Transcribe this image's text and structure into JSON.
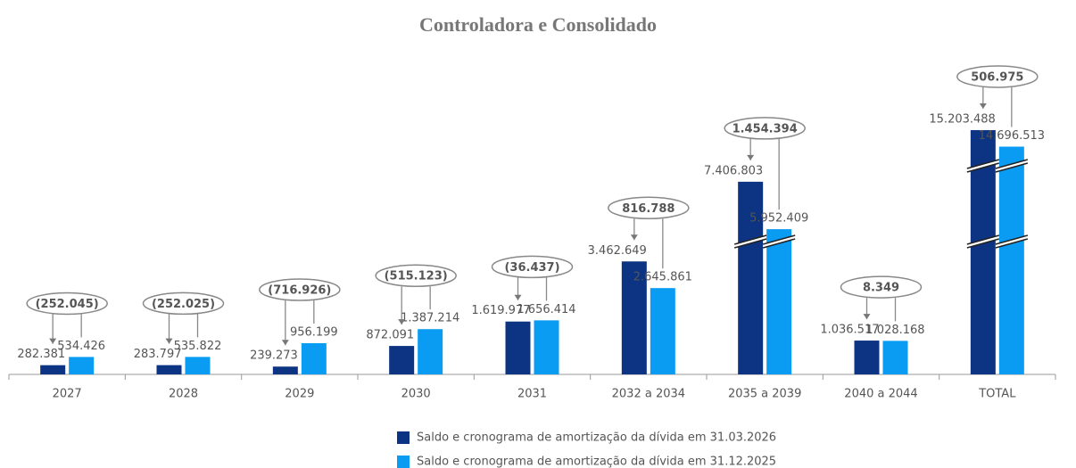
{
  "chart_data": {
    "type": "bar",
    "title": "Controladora e Consolidado",
    "categories": [
      "2027",
      "2028",
      "2029",
      "2030",
      "2031",
      "2032 a 2034",
      "2035 a 2039",
      "2040 a 2044",
      "TOTAL"
    ],
    "series": [
      {
        "name": "Saldo e cronograma de amortização da dívida em 31.03.2026",
        "color": "#0c3482",
        "values": [
          282381,
          283797,
          239273,
          872091,
          1619977,
          3462649,
          7406803,
          1036517,
          15203488
        ],
        "value_labels": [
          "282.381",
          "283.797",
          "239.273",
          "872.091",
          "1.619.977",
          "3.462.649",
          "7.406.803",
          "1.036.517",
          "15.203.488"
        ]
      },
      {
        "name": "Saldo e cronograma de amortização da dívida em 31.12.2025",
        "color": "#0a9bf3",
        "values": [
          534426,
          535822,
          956199,
          1387214,
          1656414,
          2645861,
          5952409,
          1028168,
          14696513
        ],
        "value_labels": [
          "534.426",
          "535.822",
          "956.199",
          "1.387.214",
          "1.656.414",
          "2.645.861",
          "5.952.409",
          "1.028.168",
          "14.696.513"
        ]
      }
    ],
    "annotations": {
      "values": [
        -252045,
        -252025,
        -716926,
        -515123,
        -36437,
        816788,
        1454394,
        8349,
        506975
      ],
      "value_labels": [
        "(252.045)",
        "(252.025)",
        "(716.926)",
        "(515.123)",
        "(36.437)",
        "816.788",
        "1.454.394",
        "8.349",
        "506.975"
      ]
    },
    "legend": "bottom"
  }
}
